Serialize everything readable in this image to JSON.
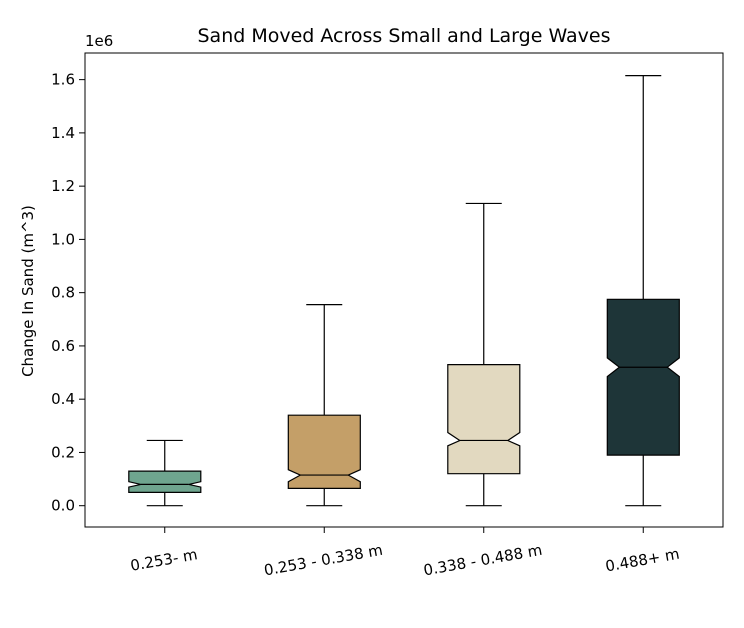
{
  "chart_data": {
    "type": "boxplot",
    "title": "Sand Moved Across Small and Large Waves",
    "xlabel": "",
    "ylabel": "Change In Sand (m^3)",
    "y_offset_label": "1e6",
    "ylim": [
      -0.08,
      1.7
    ],
    "yticks": [
      0.0,
      0.2,
      0.4,
      0.6,
      0.8,
      1.0,
      1.2,
      1.4,
      1.6
    ],
    "ytick_labels": [
      "0.0",
      "0.2",
      "0.4",
      "0.6",
      "0.8",
      "1.0",
      "1.2",
      "1.4",
      "1.6"
    ],
    "notched": true,
    "grid": false,
    "categories": [
      "0.253- m",
      "0.253 - 0.338 m",
      "0.338 - 0.488 m",
      "0.488+ m"
    ],
    "boxes": [
      {
        "category": "0.253- m",
        "whisker_low": 0.0,
        "q1": 0.05,
        "median": 0.08,
        "q3": 0.13,
        "whisker_high": 0.245,
        "notch_low": 0.07,
        "notch_high": 0.09,
        "color": "#6fa58f"
      },
      {
        "category": "0.253 - 0.338 m",
        "whisker_low": 0.0,
        "q1": 0.065,
        "median": 0.115,
        "q3": 0.34,
        "whisker_high": 0.755,
        "notch_low": 0.09,
        "notch_high": 0.135,
        "color": "#c49f68"
      },
      {
        "category": "0.338 - 0.488 m",
        "whisker_low": 0.0,
        "q1": 0.12,
        "median": 0.245,
        "q3": 0.53,
        "whisker_high": 1.135,
        "notch_low": 0.225,
        "notch_high": 0.275,
        "color": "#e2d9c0"
      },
      {
        "category": "0.488+ m",
        "whisker_low": 0.0,
        "q1": 0.19,
        "median": 0.52,
        "q3": 0.775,
        "whisker_high": 1.615,
        "notch_low": 0.485,
        "notch_high": 0.555,
        "color": "#1e3538"
      }
    ]
  }
}
